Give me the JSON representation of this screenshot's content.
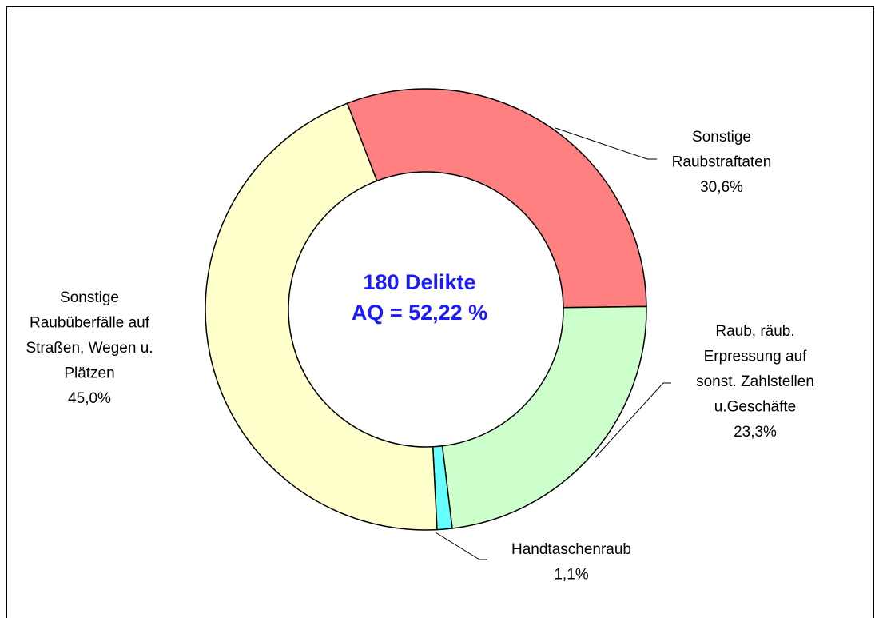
{
  "chart_data": {
    "type": "donut",
    "categories": [
      "Sonstige\nRaubstraftaten",
      "Raub, räub.\nErpressung auf\nsonst. Zahlstellen\nu.Geschäfte",
      "Handtaschenraub",
      "Sonstige\nRaubüberfälle auf\nStraßen, Wegen u.\nPlätzen"
    ],
    "values": [
      30.6,
      23.3,
      1.1,
      45.0
    ],
    "value_labels": [
      "30,6%",
      "23,3%",
      "1,1%",
      "45,0%"
    ],
    "colors": [
      "#ff8080",
      "#ccffcc",
      "#66ffff",
      "#ffffcc"
    ],
    "annotations": [
      "180 Delikte",
      "AQ = 52,22 %"
    ]
  }
}
